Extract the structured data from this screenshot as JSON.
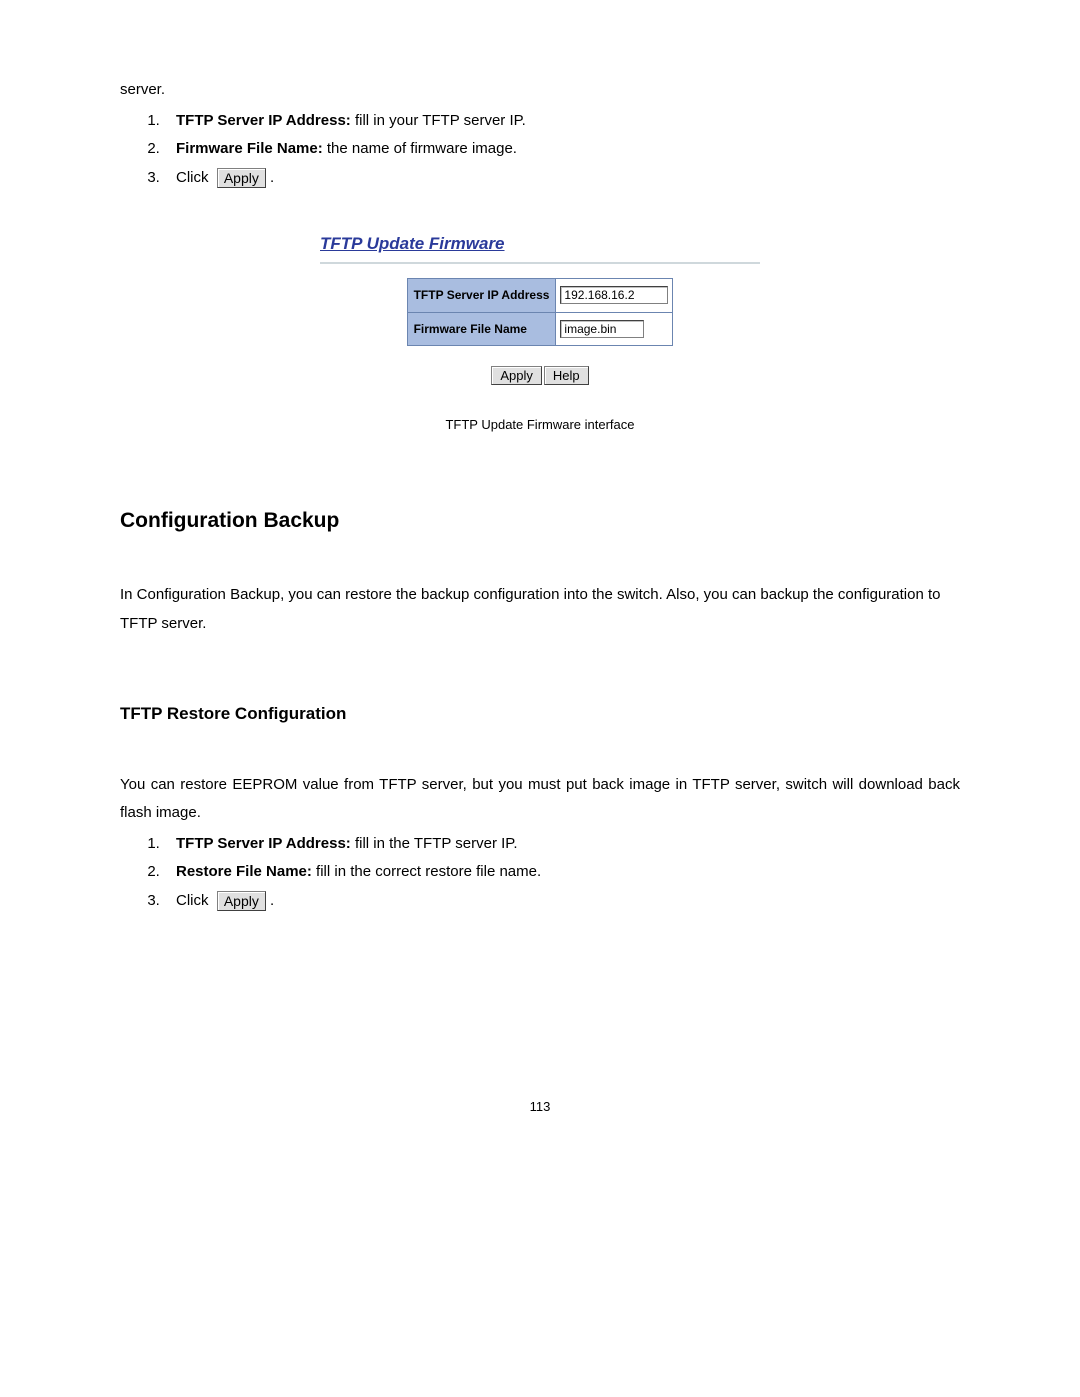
{
  "intro": {
    "server_line": "server.",
    "list": [
      {
        "label": "TFTP Server IP Address:",
        "desc": " fill in your TFTP server IP."
      },
      {
        "label": "Firmware File Name:",
        "desc": " the name of firmware image."
      }
    ],
    "click_word": "Click",
    "apply_btn": "Apply",
    "period": "."
  },
  "figure1": {
    "title": "TFTP Update Firmware",
    "row1_label": "TFTP Server IP Address",
    "row1_value": "192.168.16.2",
    "row2_label": "Firmware File Name",
    "row2_value": "image.bin",
    "apply": "Apply",
    "help": "Help",
    "caption": "TFTP Update Firmware interface"
  },
  "section2": {
    "heading": "Configuration Backup",
    "body": "In Configuration Backup, you can restore the backup configuration into the switch. Also, you can backup the configuration to TFTP server."
  },
  "section3": {
    "heading": "TFTP Restore Configuration",
    "body": "You can restore EEPROM value from TFTP server, but you must put back image in TFTP server, switch will download back flash image.",
    "list": [
      {
        "label": "TFTP Server IP Address:",
        "desc": " fill in the TFTP server IP."
      },
      {
        "label": "Restore File Name:",
        "desc": " fill in the correct restore file name."
      }
    ],
    "click_word": "Click",
    "apply_btn": "Apply",
    "period": "."
  },
  "page_number": "113",
  "colors": {
    "heading_blue": "#2a3a9a",
    "table_header_bg": "#a9bde0",
    "table_border": "#6b85b0",
    "btn_bg": "#e0e0e0"
  }
}
